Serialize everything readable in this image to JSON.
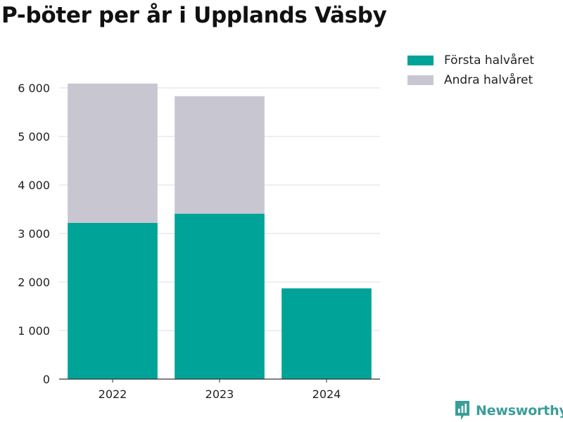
{
  "chart_data": {
    "type": "bar",
    "stacked": true,
    "title": "P-böter per år i Upplands Väsby",
    "xlabel": "",
    "ylabel": "",
    "categories": [
      "2022",
      "2023",
      "2024"
    ],
    "series": [
      {
        "name": "Första halvåret",
        "color": "#00a398",
        "values": [
          3220,
          3410,
          1870
        ]
      },
      {
        "name": "Andra halvåret",
        "color": "#c8c7d1",
        "values": [
          2870,
          2420,
          0
        ]
      }
    ],
    "ylim": [
      0,
      6000
    ],
    "yticks": [
      {
        "value": 0,
        "label": "0"
      },
      {
        "value": 1000,
        "label": "1 000"
      },
      {
        "value": 2000,
        "label": "2 000"
      },
      {
        "value": 3000,
        "label": "3 000"
      },
      {
        "value": 4000,
        "label": "4 000"
      },
      {
        "value": 5000,
        "label": "5 000"
      },
      {
        "value": 6000,
        "label": "6 000"
      }
    ],
    "grid": true,
    "legend_position": "top-right"
  },
  "brand": {
    "name": "Newsworthy",
    "icon": "newsworthy-logo-icon",
    "color": "#3a9e98"
  }
}
